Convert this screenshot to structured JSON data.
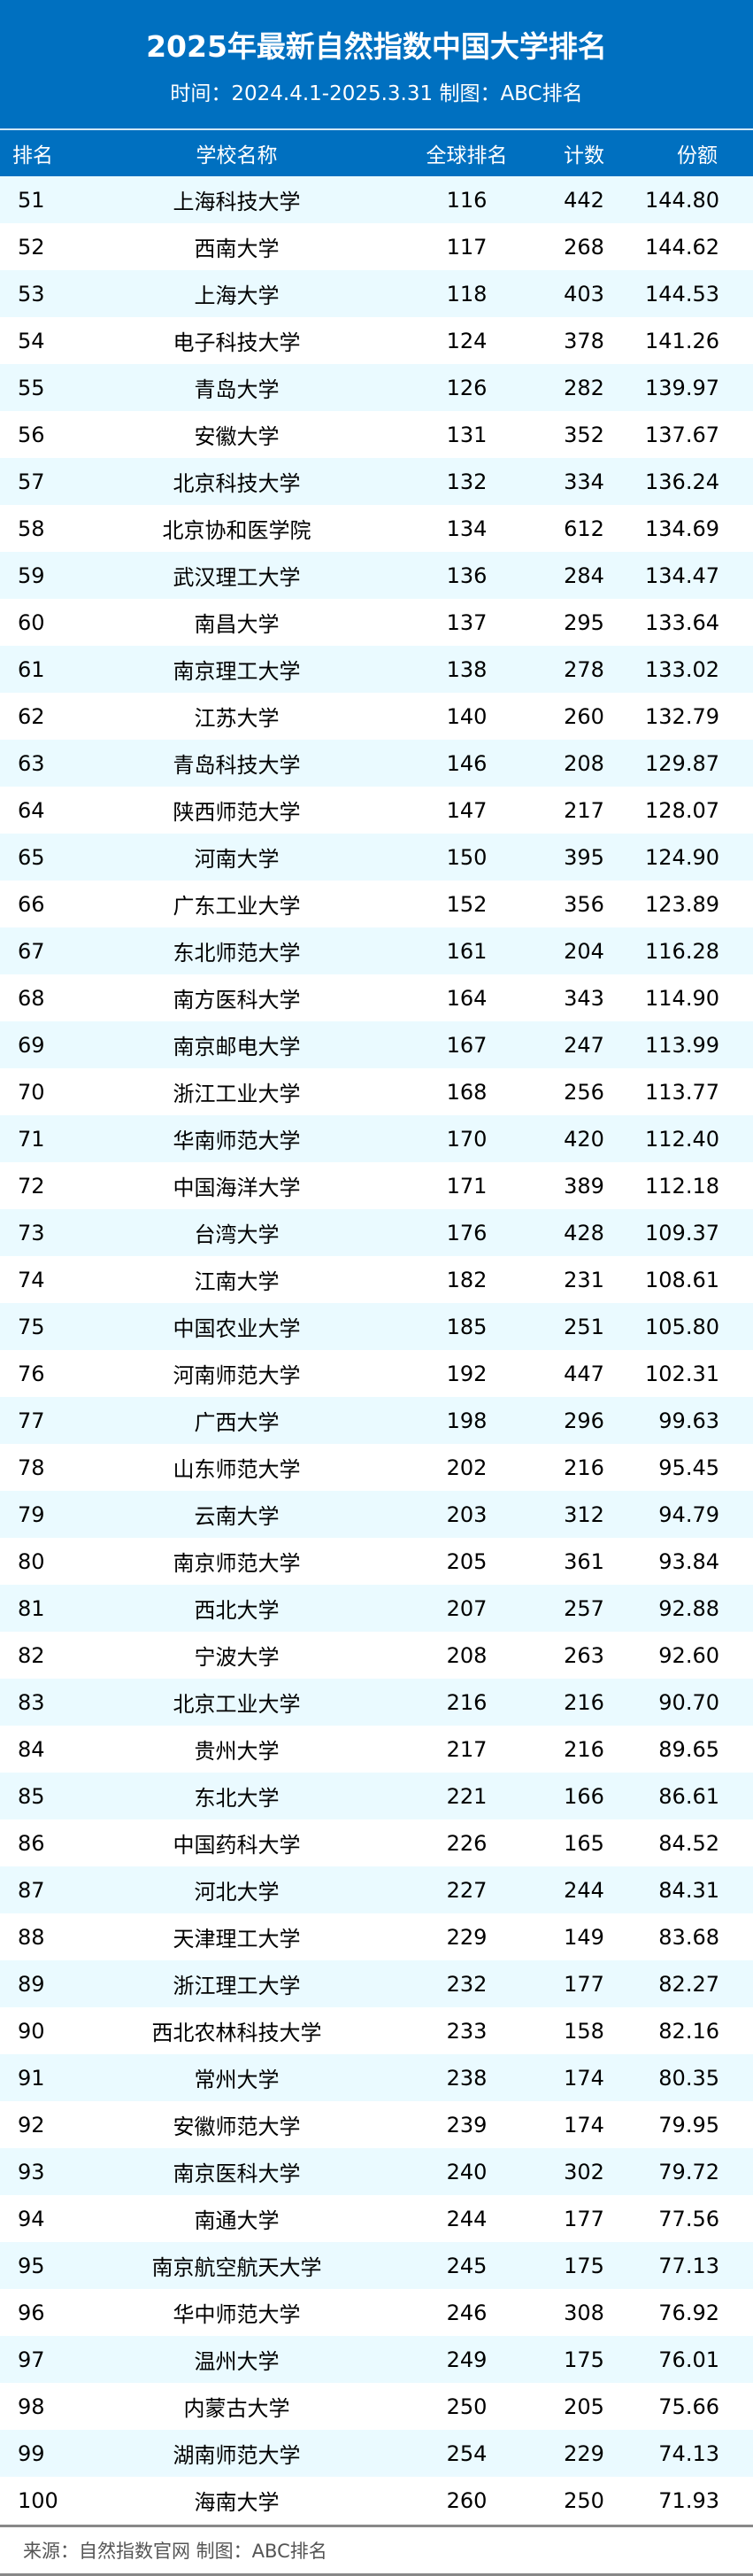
{
  "header": {
    "title": "2025年最新自然指数中国大学排名",
    "subtitle": "时间：2024.4.1-2025.3.31 制图：ABC排名"
  },
  "columns": [
    "排名",
    "学校名称",
    "全球排名",
    "计数",
    "份额"
  ],
  "rows": [
    [
      "51",
      "上海科技大学",
      "116",
      "442",
      "144.80"
    ],
    [
      "52",
      "西南大学",
      "117",
      "268",
      "144.62"
    ],
    [
      "53",
      "上海大学",
      "118",
      "403",
      "144.53"
    ],
    [
      "54",
      "电子科技大学",
      "124",
      "378",
      "141.26"
    ],
    [
      "55",
      "青岛大学",
      "126",
      "282",
      "139.97"
    ],
    [
      "56",
      "安徽大学",
      "131",
      "352",
      "137.67"
    ],
    [
      "57",
      "北京科技大学",
      "132",
      "334",
      "136.24"
    ],
    [
      "58",
      "北京协和医学院",
      "134",
      "612",
      "134.69"
    ],
    [
      "59",
      "武汉理工大学",
      "136",
      "284",
      "134.47"
    ],
    [
      "60",
      "南昌大学",
      "137",
      "295",
      "133.64"
    ],
    [
      "61",
      "南京理工大学",
      "138",
      "278",
      "133.02"
    ],
    [
      "62",
      "江苏大学",
      "140",
      "260",
      "132.79"
    ],
    [
      "63",
      "青岛科技大学",
      "146",
      "208",
      "129.87"
    ],
    [
      "64",
      "陕西师范大学",
      "147",
      "217",
      "128.07"
    ],
    [
      "65",
      "河南大学",
      "150",
      "395",
      "124.90"
    ],
    [
      "66",
      "广东工业大学",
      "152",
      "356",
      "123.89"
    ],
    [
      "67",
      "东北师范大学",
      "161",
      "204",
      "116.28"
    ],
    [
      "68",
      "南方医科大学",
      "164",
      "343",
      "114.90"
    ],
    [
      "69",
      "南京邮电大学",
      "167",
      "247",
      "113.99"
    ],
    [
      "70",
      "浙江工业大学",
      "168",
      "256",
      "113.77"
    ],
    [
      "71",
      "华南师范大学",
      "170",
      "420",
      "112.40"
    ],
    [
      "72",
      "中国海洋大学",
      "171",
      "389",
      "112.18"
    ],
    [
      "73",
      "台湾大学",
      "176",
      "428",
      "109.37"
    ],
    [
      "74",
      "江南大学",
      "182",
      "231",
      "108.61"
    ],
    [
      "75",
      "中国农业大学",
      "185",
      "251",
      "105.80"
    ],
    [
      "76",
      "河南师范大学",
      "192",
      "447",
      "102.31"
    ],
    [
      "77",
      "广西大学",
      "198",
      "296",
      "99.63"
    ],
    [
      "78",
      "山东师范大学",
      "202",
      "216",
      "95.45"
    ],
    [
      "79",
      "云南大学",
      "203",
      "312",
      "94.79"
    ],
    [
      "80",
      "南京师范大学",
      "205",
      "361",
      "93.84"
    ],
    [
      "81",
      "西北大学",
      "207",
      "257",
      "92.88"
    ],
    [
      "82",
      "宁波大学",
      "208",
      "263",
      "92.60"
    ],
    [
      "83",
      "北京工业大学",
      "216",
      "216",
      "90.70"
    ],
    [
      "84",
      "贵州大学",
      "217",
      "216",
      "89.65"
    ],
    [
      "85",
      "东北大学",
      "221",
      "166",
      "86.61"
    ],
    [
      "86",
      "中国药科大学",
      "226",
      "165",
      "84.52"
    ],
    [
      "87",
      "河北大学",
      "227",
      "244",
      "84.31"
    ],
    [
      "88",
      "天津理工大学",
      "229",
      "149",
      "83.68"
    ],
    [
      "89",
      "浙江理工大学",
      "232",
      "177",
      "82.27"
    ],
    [
      "90",
      "西北农林科技大学",
      "233",
      "158",
      "82.16"
    ],
    [
      "91",
      "常州大学",
      "238",
      "174",
      "80.35"
    ],
    [
      "92",
      "安徽师范大学",
      "239",
      "174",
      "79.95"
    ],
    [
      "93",
      "南京医科大学",
      "240",
      "302",
      "79.72"
    ],
    [
      "94",
      "南通大学",
      "244",
      "177",
      "77.56"
    ],
    [
      "95",
      "南京航空航天大学",
      "245",
      "175",
      "77.13"
    ],
    [
      "96",
      "华中师范大学",
      "246",
      "308",
      "76.92"
    ],
    [
      "97",
      "温州大学",
      "249",
      "175",
      "76.01"
    ],
    [
      "98",
      "内蒙古大学",
      "250",
      "205",
      "75.66"
    ],
    [
      "99",
      "湖南师范大学",
      "254",
      "229",
      "74.13"
    ],
    [
      "100",
      "海南大学",
      "260",
      "250",
      "71.93"
    ]
  ],
  "footer": "来源：自然指数官网   制图：ABC排名",
  "colors": {
    "header": "#0070c0",
    "stripe": "#eafaff"
  }
}
